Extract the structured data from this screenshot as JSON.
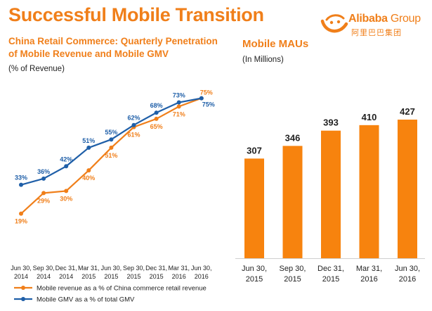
{
  "header": {
    "title": "Successful Mobile Transition",
    "logo_brand": "Alibaba",
    "logo_group": "Group",
    "logo_chinese": "阿里巴巴集团",
    "logo_icon": "alibaba-smile-icon",
    "accent_color": "#f07f1a",
    "blue_color": "#1f5fa8"
  },
  "chart_data": [
    {
      "type": "line",
      "title": "China Retail Commerce: Quarterly Penetration of Mobile Revenue and Mobile GMV",
      "unit_label": "(% of Revenue)",
      "ylim": [
        10,
        80
      ],
      "grid": false,
      "legend_position": "bottom",
      "x_labels": [
        [
          "Jun 30,",
          "2014"
        ],
        [
          "Sep 30,",
          "2014"
        ],
        [
          "Dec 31,",
          "2014"
        ],
        [
          "Mar 31,",
          "2015"
        ],
        [
          "Jun 30,",
          "2015"
        ],
        [
          "Sep 30,",
          "2015"
        ],
        [
          "Dec 31,",
          "2015"
        ],
        [
          "Mar 31,",
          "2016"
        ],
        [
          "Jun 30,",
          "2016"
        ]
      ],
      "series": [
        {
          "name": "Mobile revenue as a % of China commerce retail revenue",
          "color": "#f07f1a",
          "values": [
            19,
            29,
            30,
            40,
            51,
            61,
            65,
            71,
            75
          ],
          "labels": [
            "19%",
            "29%",
            "30%",
            "40%",
            "51%",
            "61%",
            "65%",
            "71%",
            "75%"
          ]
        },
        {
          "name": "Mobile GMV as a % of total GMV",
          "color": "#1f5fa8",
          "values": [
            33,
            36,
            42,
            51,
            55,
            62,
            68,
            73,
            75
          ],
          "labels": [
            "33%",
            "36%",
            "42%",
            "51%",
            "55%",
            "62%",
            "68%",
            "73%",
            "75%"
          ]
        }
      ]
    },
    {
      "type": "bar",
      "title": "Mobile MAUs",
      "unit_label": "(In Millions)",
      "ylim": [
        0,
        480
      ],
      "grid": false,
      "color": "#f7830e",
      "categories": [
        [
          "Jun 30,",
          "2015"
        ],
        [
          "Sep 30,",
          "2015"
        ],
        [
          "Dec 31,",
          "2015"
        ],
        [
          "Mar 31,",
          "2016"
        ],
        [
          "Jun 30,",
          "2016"
        ]
      ],
      "values": [
        307,
        346,
        393,
        410,
        427
      ],
      "labels": [
        "307",
        "346",
        "393",
        "410",
        "427"
      ]
    }
  ]
}
